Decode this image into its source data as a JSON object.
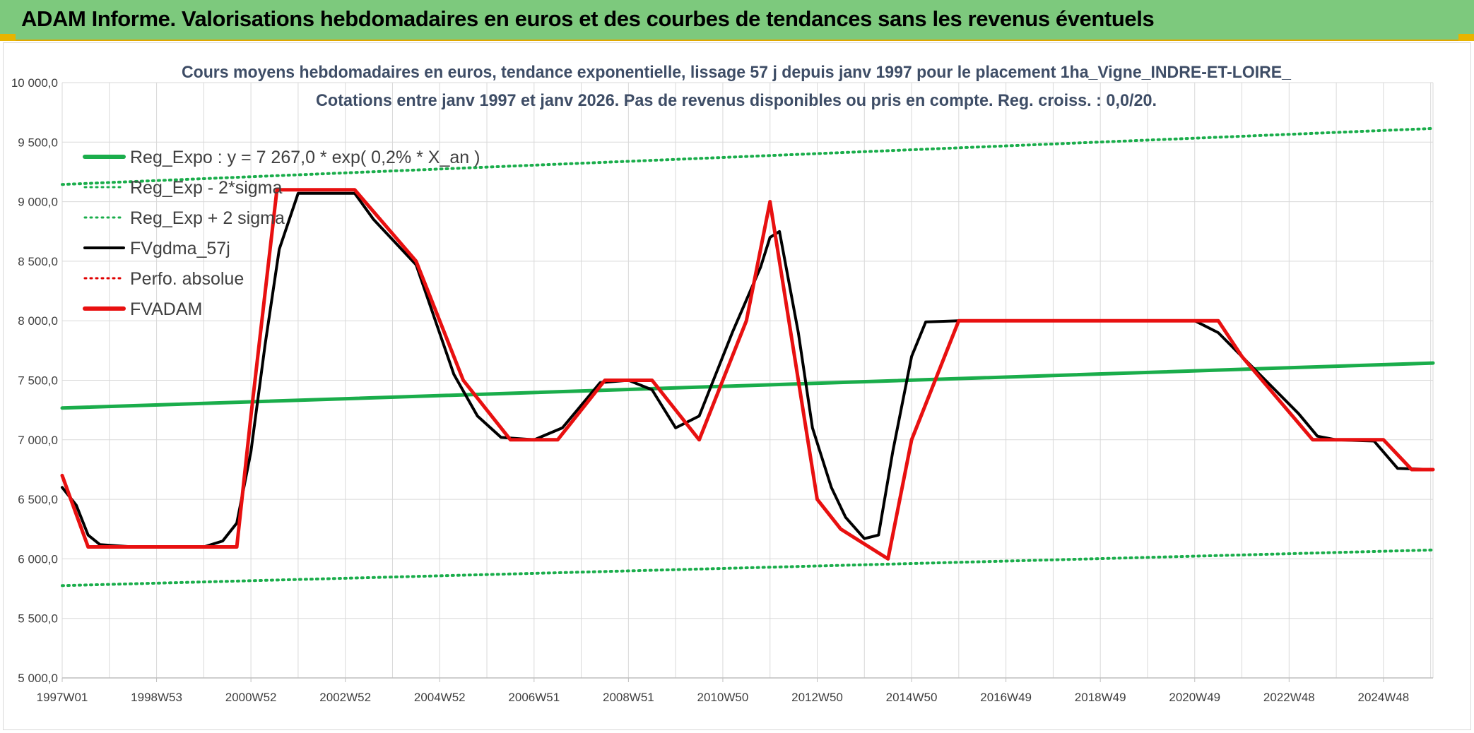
{
  "header": {
    "title": "ADAM Informe. Valorisations hebdomadaires en euros et des courbes de tendances sans les revenus éventuels"
  },
  "colors": {
    "banner": "#7dc97d",
    "trend": "#1aad4b",
    "band": "#1aad4b",
    "smoothed": "#000000",
    "perf": "#e00000",
    "adam": "#e81010",
    "grid": "#d9d9d9"
  },
  "chart_data": {
    "type": "line",
    "title": "Cours moyens hebdomadaires en euros, tendance exponentielle, lissage 57 j depuis janv 1997 pour le placement 1ha_Vigne_INDRE-ET-LOIRE_",
    "subtitle": "Cotations entre janv 1997 et janv 2026. Pas de revenus disponibles ou pris en compte. Reg. croiss. : 0,0/20.",
    "xlabel": "",
    "ylabel": "",
    "x_range": [
      1997.0,
      2026.05
    ],
    "ylim": [
      5000,
      10000
    ],
    "grid": true,
    "legend_position": "top-left",
    "y_ticks": [
      "5 000,0",
      "5 500,0",
      "6 000,0",
      "6 500,0",
      "7 000,0",
      "7 500,0",
      "8 000,0",
      "8 500,0",
      "9 000,0",
      "9 500,0",
      "10 000,0"
    ],
    "y_tick_values": [
      5000,
      5500,
      6000,
      6500,
      7000,
      7500,
      8000,
      8500,
      9000,
      9500,
      10000
    ],
    "x_tick_labels": [
      "1997W01",
      "1998W53",
      "2000W52",
      "2002W52",
      "2004W52",
      "2006W51",
      "2008W51",
      "2010W50",
      "2012W50",
      "2014W50",
      "2016W49",
      "2018W49",
      "2020W49",
      "2022W48",
      "2024W48"
    ],
    "x_tick_values": [
      1997.0,
      1999.0,
      2001.0,
      2003.0,
      2005.0,
      2007.0,
      2009.0,
      2011.0,
      2013.0,
      2015.0,
      2017.0,
      2019.0,
      2021.0,
      2023.0,
      2025.0
    ],
    "series": [
      {
        "name": "Reg_Expo : y = 7 267,0 * exp( 0,2% *  X_an )",
        "style": "solid-thick",
        "color": "#1aad4b",
        "x": [
          1997.0,
          2026.05
        ],
        "y": [
          7267,
          7645
        ]
      },
      {
        "name": "Reg_Exp - 2*sigma",
        "style": "dotted",
        "color": "#1aad4b",
        "x": [
          1997.0,
          2026.05
        ],
        "y": [
          5775,
          6075
        ]
      },
      {
        "name": "Reg_Exp + 2 sigma",
        "style": "dotted",
        "color": "#1aad4b",
        "x": [
          1997.0,
          2026.05
        ],
        "y": [
          9145,
          9615
        ]
      },
      {
        "name": "FVgdma_57j",
        "style": "solid",
        "color": "#000000",
        "x": [
          1997.0,
          1997.3,
          1997.55,
          1997.8,
          1998.5,
          2000.0,
          2000.4,
          2000.7,
          2001.0,
          2001.3,
          2001.6,
          2002.0,
          2003.2,
          2003.6,
          2004.5,
          2005.3,
          2005.8,
          2006.3,
          2007.0,
          2007.6,
          2008.4,
          2009.0,
          2009.5,
          2010.0,
          2010.5,
          2011.2,
          2011.8,
          2012.0,
          2012.2,
          2012.6,
          2012.9,
          2013.3,
          2013.6,
          2014.0,
          2014.3,
          2014.6,
          2015.0,
          2015.3,
          2016.0,
          2018.0,
          2020.5,
          2021.0,
          2021.5,
          2022.5,
          2023.2,
          2023.6,
          2024.0,
          2024.8,
          2025.3,
          2026.05
        ],
        "y": [
          6600,
          6450,
          6200,
          6120,
          6100,
          6100,
          6150,
          6300,
          6900,
          7800,
          8600,
          9070,
          9070,
          8850,
          8470,
          7550,
          7200,
          7020,
          7000,
          7100,
          7480,
          7500,
          7420,
          7100,
          7200,
          7900,
          8450,
          8700,
          8750,
          7900,
          7100,
          6600,
          6350,
          6170,
          6200,
          6900,
          7700,
          7990,
          8000,
          8000,
          8000,
          8000,
          7900,
          7500,
          7220,
          7030,
          7000,
          6990,
          6760,
          6750
        ]
      },
      {
        "name": "Perfo. absolue",
        "style": "dotted",
        "color": "#e00000",
        "x": [],
        "y": []
      },
      {
        "name": "FVADAM",
        "style": "solid-thick",
        "color": "#e81010",
        "x": [
          1997.0,
          1997.55,
          1998.0,
          2000.0,
          2000.7,
          2001.0,
          2001.55,
          2003.2,
          2004.5,
          2005.5,
          2006.5,
          2007.5,
          2008.5,
          2009.0,
          2009.5,
          2010.5,
          2011.0,
          2011.5,
          2012.0,
          2013.0,
          2013.5,
          2014.5,
          2015.0,
          2016.0,
          2020.0,
          2021.5,
          2022.0,
          2023.5,
          2024.0,
          2025.0,
          2025.6,
          2026.05
        ],
        "y": [
          6700,
          6100,
          6100,
          6100,
          6100,
          7200,
          9100,
          9100,
          8500,
          7500,
          7000,
          7000,
          7500,
          7500,
          7500,
          7000,
          7500,
          8000,
          9000,
          6500,
          6250,
          6000,
          7000,
          8000,
          8000,
          8000,
          7700,
          7000,
          7000,
          7000,
          6750,
          6750
        ]
      }
    ]
  }
}
